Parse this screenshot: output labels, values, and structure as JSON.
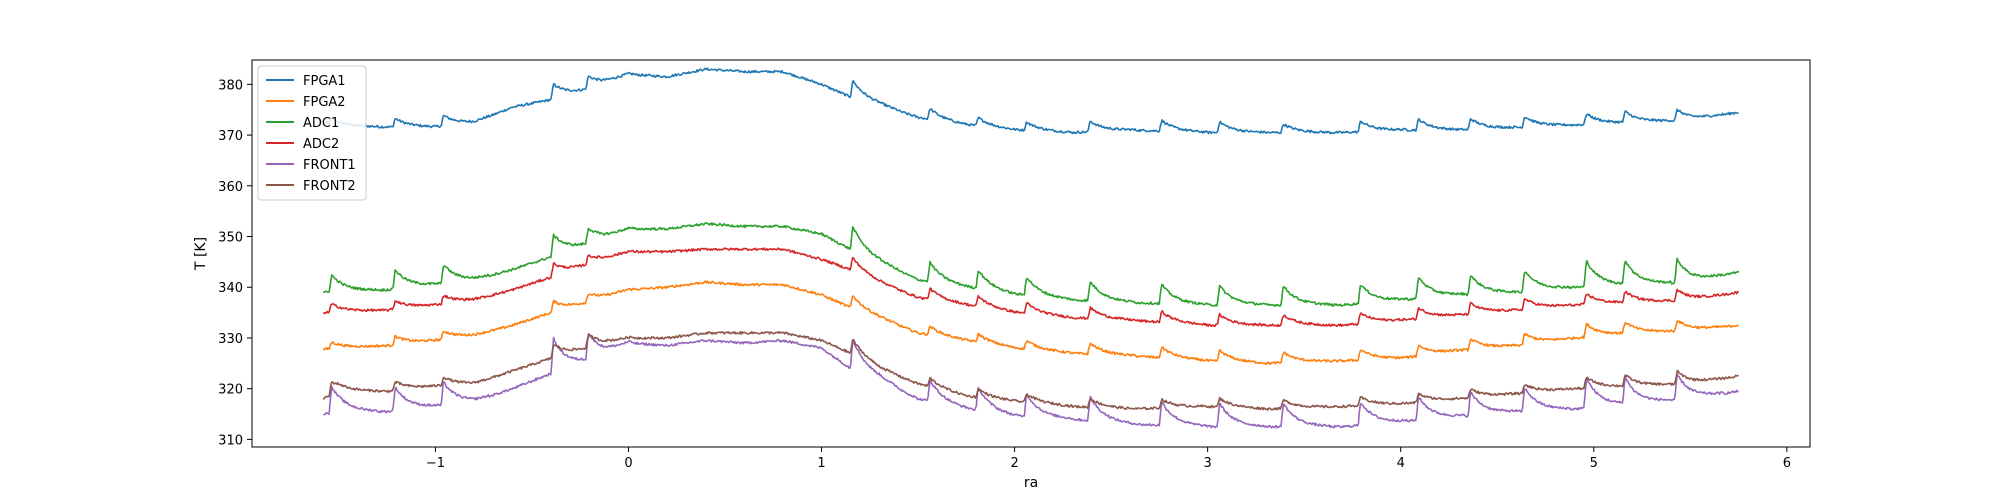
{
  "chart_data": {
    "type": "line",
    "title": "",
    "xlabel": "ra",
    "ylabel": "T [K]",
    "xlim": [
      -1.95,
      6.12
    ],
    "ylim": [
      308.5,
      384.8
    ],
    "xticks": [
      -1,
      0,
      1,
      2,
      3,
      4,
      5,
      6
    ],
    "xtick_labels": [
      "−1",
      "0",
      "1",
      "2",
      "3",
      "4",
      "5",
      "6"
    ],
    "yticks": [
      310,
      320,
      330,
      340,
      350,
      360,
      370,
      380
    ],
    "ytick_labels": [
      "310",
      "320",
      "330",
      "340",
      "350",
      "360",
      "370",
      "380"
    ],
    "grid": false,
    "legend_position": "top-left",
    "x_start": -1.58,
    "x_end": 5.75,
    "spike_positions": [
      -1.55,
      -1.22,
      -0.97,
      -0.4,
      -0.22,
      1.15,
      1.55,
      1.8,
      2.05,
      2.38,
      2.75,
      3.05,
      3.38,
      3.78,
      4.08,
      4.35,
      4.63,
      4.95,
      5.15,
      5.42
    ],
    "series": [
      {
        "name": "FPGA1",
        "color": "#1f77b4",
        "points": [
          [
            -1.58,
            372.5
          ],
          [
            -1.5,
            371.8
          ],
          [
            -1.25,
            371.6
          ],
          [
            -1.0,
            371.6
          ],
          [
            -0.8,
            372.5
          ],
          [
            -0.6,
            375.5
          ],
          [
            -0.4,
            377.0
          ],
          [
            -0.2,
            379.0
          ],
          [
            0.0,
            382.0
          ],
          [
            0.2,
            381.5
          ],
          [
            0.4,
            383.0
          ],
          [
            0.6,
            382.5
          ],
          [
            0.8,
            382.5
          ],
          [
            1.0,
            380.0
          ],
          [
            1.15,
            377.5
          ],
          [
            1.3,
            376.0
          ],
          [
            1.5,
            373.5
          ],
          [
            1.75,
            372.0
          ],
          [
            2.0,
            371.0
          ],
          [
            2.3,
            370.5
          ],
          [
            2.6,
            371.0
          ],
          [
            3.0,
            370.5
          ],
          [
            3.3,
            370.5
          ],
          [
            3.7,
            370.5
          ],
          [
            4.0,
            371.0
          ],
          [
            4.3,
            371.0
          ],
          [
            4.6,
            371.5
          ],
          [
            4.9,
            372.0
          ],
          [
            5.2,
            372.5
          ],
          [
            5.5,
            373.0
          ],
          [
            5.75,
            374.5
          ]
        ],
        "spike_heights": [
          1.5,
          2,
          2.5,
          3.5,
          3,
          4,
          2.5,
          2,
          2,
          2.5,
          2.5,
          2.5,
          2,
          2.5,
          2.5,
          2.5,
          2.5,
          2.5,
          2.5,
          2.5
        ]
      },
      {
        "name": "FPGA2",
        "color": "#ff7f0e",
        "points": [
          [
            -1.58,
            327.8
          ],
          [
            -1.25,
            328.5
          ],
          [
            -1.0,
            329.5
          ],
          [
            -0.8,
            330.5
          ],
          [
            -0.6,
            332.5
          ],
          [
            -0.4,
            335.0
          ],
          [
            -0.2,
            337.0
          ],
          [
            0.0,
            339.5
          ],
          [
            0.2,
            340.0
          ],
          [
            0.4,
            341.0
          ],
          [
            0.6,
            340.5
          ],
          [
            0.8,
            340.5
          ],
          [
            1.0,
            338.5
          ],
          [
            1.15,
            336.0
          ],
          [
            1.3,
            334.0
          ],
          [
            1.5,
            331.0
          ],
          [
            1.75,
            329.5
          ],
          [
            2.0,
            328.0
          ],
          [
            2.3,
            327.0
          ],
          [
            2.6,
            326.5
          ],
          [
            3.0,
            325.5
          ],
          [
            3.3,
            325.0
          ],
          [
            3.7,
            325.5
          ],
          [
            4.0,
            326.0
          ],
          [
            4.3,
            327.5
          ],
          [
            4.6,
            328.5
          ],
          [
            4.9,
            330.0
          ],
          [
            5.2,
            331.0
          ],
          [
            5.5,
            331.5
          ],
          [
            5.75,
            332.5
          ]
        ],
        "spike_heights": [
          1.5,
          2,
          2,
          2.5,
          2,
          3,
          2,
          2,
          2,
          2.5,
          2.5,
          2.5,
          2.5,
          2.5,
          2.5,
          2.5,
          2.5,
          3,
          2.5,
          2.5
        ]
      },
      {
        "name": "ADC1",
        "color": "#2ca02c",
        "points": [
          [
            -1.58,
            339.0
          ],
          [
            -1.25,
            339.5
          ],
          [
            -1.0,
            340.5
          ],
          [
            -0.8,
            341.5
          ],
          [
            -0.6,
            343.5
          ],
          [
            -0.4,
            346.0
          ],
          [
            -0.2,
            348.5
          ],
          [
            0.0,
            351.5
          ],
          [
            0.2,
            351.5
          ],
          [
            0.4,
            352.5
          ],
          [
            0.6,
            352.0
          ],
          [
            0.8,
            352.0
          ],
          [
            1.0,
            350.5
          ],
          [
            1.15,
            347.5
          ],
          [
            1.3,
            345.0
          ],
          [
            1.5,
            341.5
          ],
          [
            1.75,
            340.0
          ],
          [
            2.0,
            338.5
          ],
          [
            2.3,
            337.5
          ],
          [
            2.6,
            337.0
          ],
          [
            3.0,
            336.5
          ],
          [
            3.3,
            336.5
          ],
          [
            3.7,
            336.5
          ],
          [
            4.0,
            337.5
          ],
          [
            4.3,
            338.5
          ],
          [
            4.6,
            339.0
          ],
          [
            4.9,
            340.0
          ],
          [
            5.2,
            340.5
          ],
          [
            5.5,
            341.0
          ],
          [
            5.75,
            343.0
          ]
        ],
        "spike_heights": [
          4,
          4.5,
          4.5,
          5,
          3.5,
          5.5,
          4.5,
          4.5,
          4.5,
          4.5,
          4.5,
          4.5,
          4.5,
          4.5,
          5,
          4.5,
          5,
          6,
          5.5,
          5.5
        ]
      },
      {
        "name": "ADC2",
        "color": "#d62728",
        "points": [
          [
            -1.58,
            335.0
          ],
          [
            -1.25,
            335.5
          ],
          [
            -1.0,
            336.5
          ],
          [
            -0.8,
            337.5
          ],
          [
            -0.6,
            339.5
          ],
          [
            -0.4,
            342.0
          ],
          [
            -0.2,
            344.5
          ],
          [
            0.0,
            347.0
          ],
          [
            0.2,
            347.0
          ],
          [
            0.4,
            347.5
          ],
          [
            0.6,
            347.5
          ],
          [
            0.8,
            347.5
          ],
          [
            1.0,
            345.5
          ],
          [
            1.15,
            343.5
          ],
          [
            1.3,
            341.0
          ],
          [
            1.5,
            338.0
          ],
          [
            1.75,
            336.5
          ],
          [
            2.0,
            335.0
          ],
          [
            2.3,
            334.0
          ],
          [
            2.6,
            333.5
          ],
          [
            3.0,
            332.5
          ],
          [
            3.3,
            332.5
          ],
          [
            3.7,
            332.5
          ],
          [
            4.0,
            333.5
          ],
          [
            4.3,
            334.5
          ],
          [
            4.6,
            335.5
          ],
          [
            4.9,
            336.5
          ],
          [
            5.2,
            337.0
          ],
          [
            5.5,
            337.5
          ],
          [
            5.75,
            339.0
          ]
        ],
        "spike_heights": [
          2,
          2,
          2,
          3,
          2,
          3,
          2.5,
          2.5,
          2.5,
          2.5,
          2.5,
          2.5,
          2.5,
          2.5,
          2.5,
          2.5,
          2.5,
          2.5,
          2.5,
          2.5
        ]
      },
      {
        "name": "FRONT1",
        "color": "#9467bd",
        "points": [
          [
            -1.58,
            315.0
          ],
          [
            -1.5,
            315.5
          ],
          [
            -1.25,
            315.5
          ],
          [
            -1.0,
            316.5
          ],
          [
            -0.8,
            317.5
          ],
          [
            -0.6,
            320.0
          ],
          [
            -0.4,
            323.0
          ],
          [
            -0.2,
            325.5
          ],
          [
            0.0,
            329.0
          ],
          [
            0.2,
            328.5
          ],
          [
            0.4,
            329.5
          ],
          [
            0.6,
            329.0
          ],
          [
            0.8,
            329.5
          ],
          [
            1.0,
            328.0
          ],
          [
            1.15,
            324.0
          ],
          [
            1.3,
            322.0
          ],
          [
            1.5,
            318.0
          ],
          [
            1.75,
            316.0
          ],
          [
            2.0,
            314.5
          ],
          [
            2.3,
            314.0
          ],
          [
            2.6,
            313.0
          ],
          [
            3.0,
            312.5
          ],
          [
            3.3,
            312.5
          ],
          [
            3.7,
            312.5
          ],
          [
            4.0,
            313.5
          ],
          [
            4.3,
            314.5
          ],
          [
            4.6,
            315.5
          ],
          [
            4.9,
            316.0
          ],
          [
            5.2,
            317.0
          ],
          [
            5.5,
            318.0
          ],
          [
            5.75,
            319.5
          ]
        ],
        "spike_heights": [
          6,
          5.5,
          5.5,
          8,
          6,
          7,
          5,
          5.5,
          5.5,
          5.5,
          5.5,
          5.5,
          5.5,
          5.5,
          5.5,
          5.5,
          5.5,
          7,
          6,
          6
        ]
      },
      {
        "name": "FRONT2",
        "color": "#8c564b",
        "points": [
          [
            -1.58,
            318.0
          ],
          [
            -1.5,
            319.5
          ],
          [
            -1.25,
            319.5
          ],
          [
            -1.0,
            320.5
          ],
          [
            -0.8,
            321.0
          ],
          [
            -0.6,
            323.5
          ],
          [
            -0.4,
            326.0
          ],
          [
            -0.2,
            328.0
          ],
          [
            0.0,
            330.0
          ],
          [
            0.2,
            330.0
          ],
          [
            0.4,
            331.0
          ],
          [
            0.6,
            331.0
          ],
          [
            0.8,
            331.0
          ],
          [
            1.0,
            329.5
          ],
          [
            1.15,
            327.0
          ],
          [
            1.3,
            324.0
          ],
          [
            1.5,
            321.0
          ],
          [
            1.75,
            318.5
          ],
          [
            2.0,
            317.5
          ],
          [
            2.3,
            316.5
          ],
          [
            2.6,
            316.0
          ],
          [
            3.0,
            316.5
          ],
          [
            3.3,
            316.0
          ],
          [
            3.7,
            316.5
          ],
          [
            4.0,
            317.0
          ],
          [
            4.3,
            318.0
          ],
          [
            4.6,
            319.0
          ],
          [
            4.9,
            320.0
          ],
          [
            5.2,
            320.5
          ],
          [
            5.5,
            321.0
          ],
          [
            5.75,
            322.5
          ]
        ],
        "spike_heights": [
          3,
          2,
          2,
          3,
          3,
          3.5,
          2,
          2,
          2,
          2,
          2,
          2,
          2,
          2,
          2,
          2,
          2,
          2.5,
          2.5,
          3
        ]
      }
    ]
  }
}
